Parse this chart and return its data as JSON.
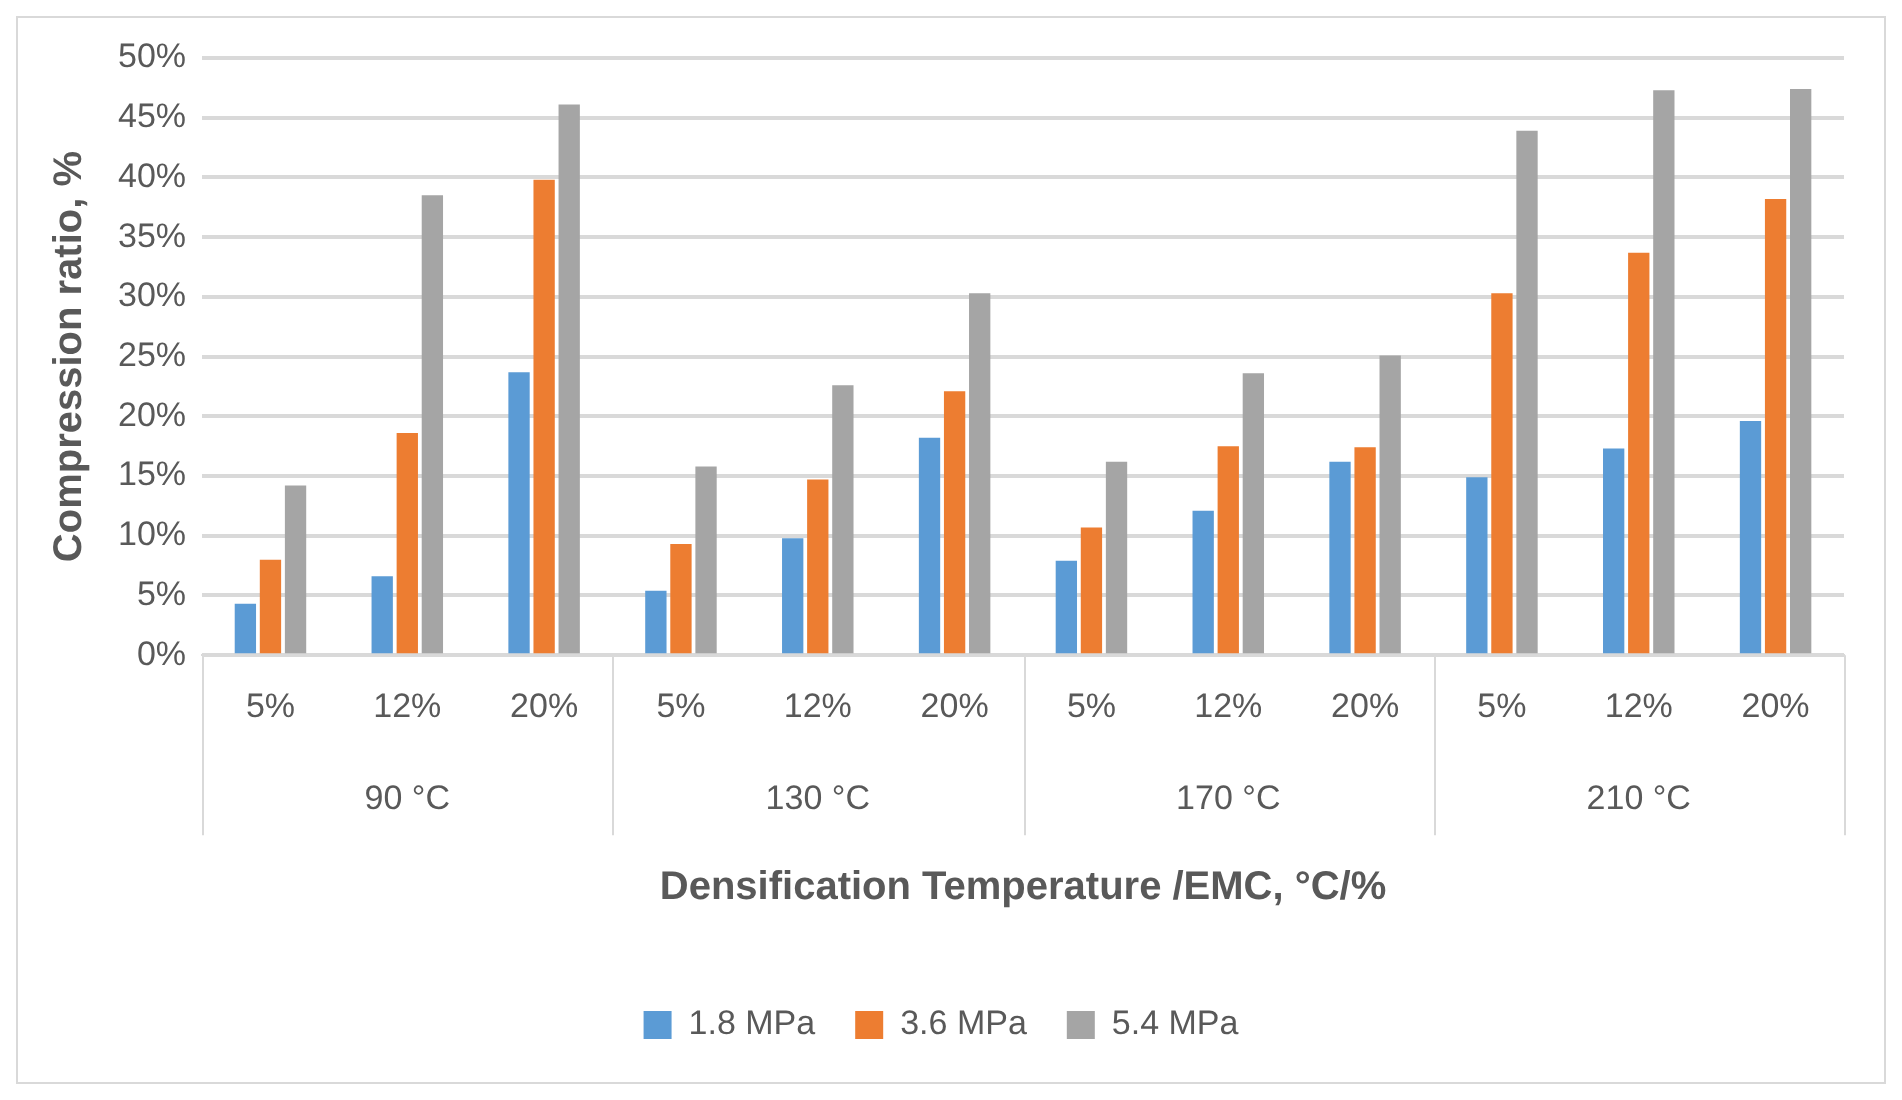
{
  "chart_data": {
    "type": "bar",
    "xlabel": "Densification Temperature /EMC, °C/%",
    "ylabel": "Compression ratio, %",
    "categories": [
      "5%",
      "12%",
      "20%",
      "5%",
      "12%",
      "20%",
      "5%",
      "12%",
      "20%",
      "5%",
      "12%",
      "20%"
    ],
    "annotations": [
      "90 °C",
      "130 °C",
      "170 °C",
      "210 °C"
    ],
    "series": [
      {
        "name": "1.8 MPa",
        "color": "#5b9bd5",
        "values": [
          4.3,
          6.6,
          23.7,
          5.4,
          9.8,
          18.2,
          7.9,
          12.1,
          16.2,
          14.9,
          17.3,
          19.6
        ]
      },
      {
        "name": "3.6 MPa",
        "color": "#ed7d31",
        "values": [
          8.0,
          18.6,
          39.8,
          9.3,
          14.7,
          22.1,
          10.7,
          17.5,
          17.4,
          30.3,
          33.7,
          38.2
        ]
      },
      {
        "name": "5.4 MPa",
        "color": "#a5a5a5",
        "values": [
          14.2,
          38.5,
          46.1,
          15.8,
          22.6,
          30.3,
          16.2,
          23.6,
          25.1,
          43.9,
          47.3,
          47.4
        ]
      }
    ],
    "ylim": [
      0,
      50
    ],
    "yticks": [
      {
        "value": 0,
        "label": "0%"
      },
      {
        "value": 5,
        "label": "5%"
      },
      {
        "value": 10,
        "label": "10%"
      },
      {
        "value": 15,
        "label": "15%"
      },
      {
        "value": 20,
        "label": "20%"
      },
      {
        "value": 25,
        "label": "25%"
      },
      {
        "value": 30,
        "label": "30%"
      },
      {
        "value": 35,
        "label": "35%"
      },
      {
        "value": 40,
        "label": "40%"
      },
      {
        "value": 45,
        "label": "45%"
      },
      {
        "value": 50,
        "label": "50%"
      }
    ],
    "grid": "y",
    "legend": "bottom"
  }
}
